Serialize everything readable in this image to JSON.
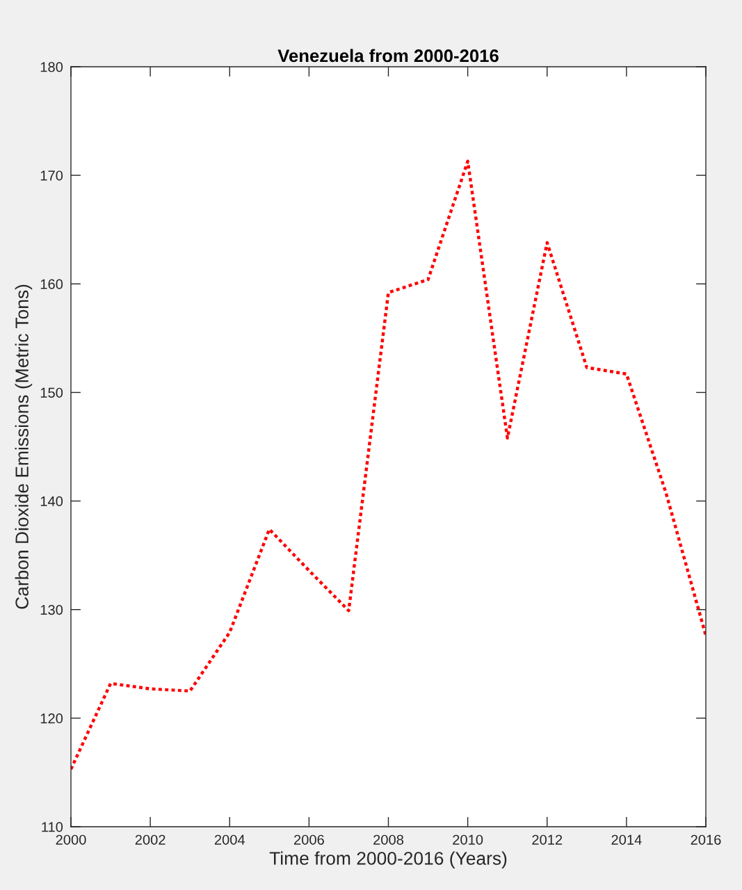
{
  "chart_data": {
    "type": "line",
    "title": "Venezuela from 2000-2016",
    "xlabel": "Time from 2000-2016 (Years)",
    "ylabel": "Carbon Dioxide Emissions (Metric Tons)",
    "x": [
      2000,
      2001,
      2002,
      2003,
      2004,
      2005,
      2006,
      2007,
      2008,
      2009,
      2010,
      2011,
      2012,
      2013,
      2014,
      2015,
      2016
    ],
    "series": [
      {
        "color": "#ff0000",
        "values": [
          115.3,
          123.2,
          122.7,
          122.5,
          127.9,
          137.4,
          133.6,
          129.9,
          159.2,
          160.4,
          171.3,
          145.8,
          163.8,
          152.3,
          151.7,
          140.7,
          127.6
        ]
      }
    ],
    "xlim": [
      2000,
      2016
    ],
    "xticks": [
      2000,
      2002,
      2004,
      2006,
      2008,
      2010,
      2012,
      2014,
      2016
    ],
    "ylim": [
      110,
      180
    ],
    "yticks": [
      110,
      120,
      130,
      140,
      150,
      160,
      170,
      180
    ],
    "grid": false,
    "marker": "none",
    "line_style": "dotted"
  }
}
